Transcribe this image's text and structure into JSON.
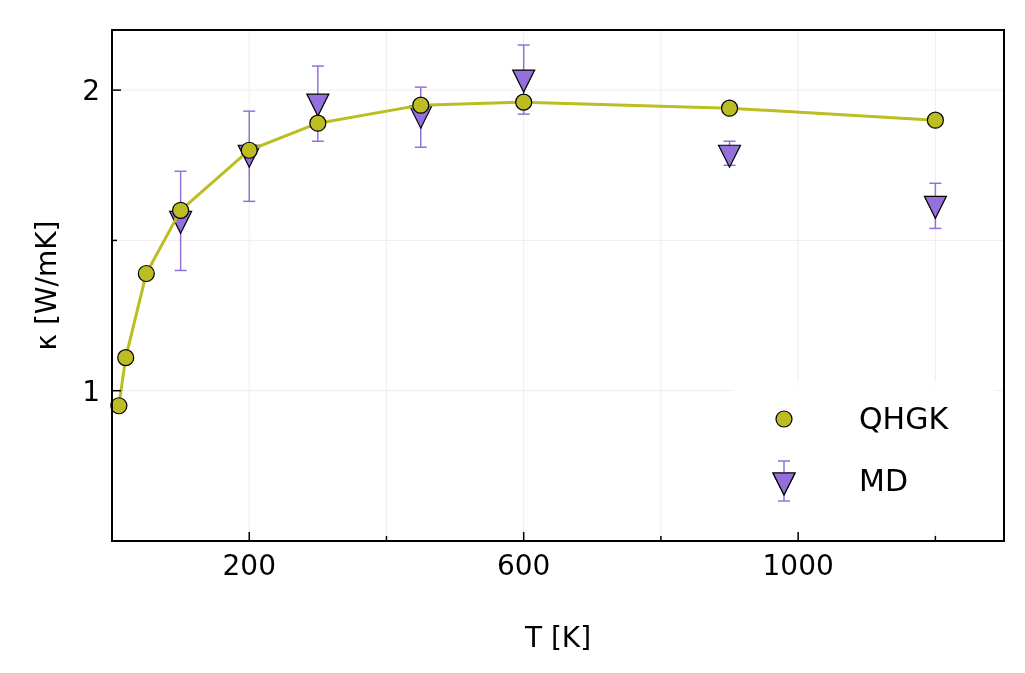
{
  "chart_data": {
    "type": "line",
    "xlabel": "T [K]",
    "ylabel": "κ [W/mK]",
    "xlim": [
      0,
      1300
    ],
    "ylim": [
      0.5,
      2.2
    ],
    "xticks": [
      200,
      {
        "value": 400,
        "label": null
      },
      600,
      {
        "value": 800,
        "label": null
      },
      1000,
      {
        "value": 1200,
        "label": null
      }
    ],
    "yticks": [
      1,
      {
        "value": 1.5,
        "label": null
      },
      2
    ],
    "grid": true,
    "legend": "bottom right",
    "series": [
      {
        "name": "QHGK",
        "marker": "circle",
        "line_style": "solid",
        "color": "#bcbd22",
        "x": [
          10,
          20,
          50,
          100,
          200,
          300,
          450,
          600,
          900,
          1200
        ],
        "values": [
          0.95,
          1.11,
          1.39,
          1.6,
          1.8,
          1.89,
          1.95,
          1.96,
          1.94,
          1.9
        ]
      },
      {
        "name": "MD",
        "type": "scatter",
        "marker": "triangle",
        "color": "#9370db",
        "x": [
          100,
          200,
          300,
          450,
          600,
          900,
          1200
        ],
        "values": [
          1.57,
          1.79,
          1.96,
          1.92,
          2.04,
          1.79,
          1.62
        ],
        "errors": [
          [
            1.4,
            1.73
          ],
          [
            1.63,
            1.93
          ],
          [
            1.83,
            2.08
          ],
          [
            1.81,
            2.01
          ],
          [
            1.92,
            2.15
          ],
          [
            1.75,
            1.83
          ],
          [
            1.54,
            1.69
          ]
        ]
      }
    ]
  }
}
